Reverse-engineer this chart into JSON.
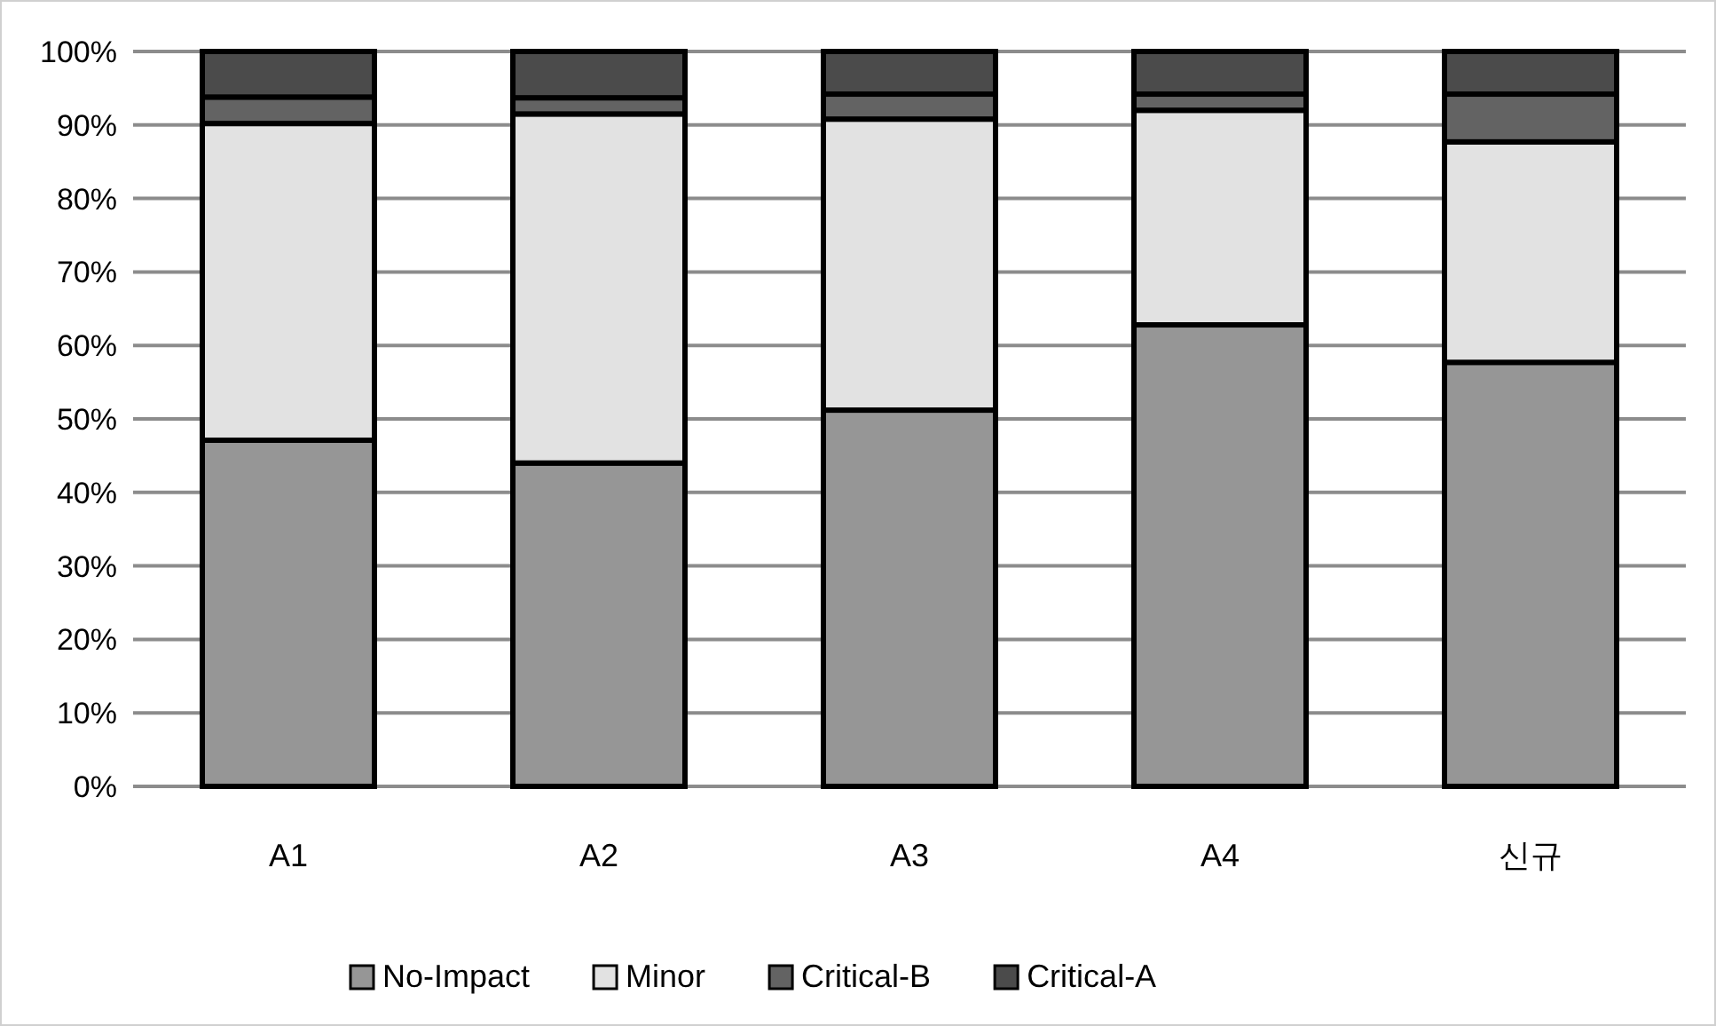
{
  "chart_data": {
    "type": "bar",
    "stacked": true,
    "categories": [
      "A1",
      "A2",
      "A3",
      "A4",
      "신규"
    ],
    "series": [
      {
        "name": "No-Impact",
        "color": "#969696",
        "values": [
          47.1,
          44,
          51.2,
          62.8,
          57.7
        ]
      },
      {
        "name": "Minor",
        "color": "#e2e2e2",
        "values": [
          43.1,
          47.5,
          39.6,
          29.2,
          30
        ]
      },
      {
        "name": "Critical-B",
        "color": "#636363",
        "values": [
          3.6,
          2.2,
          3.4,
          2.2,
          6.5
        ]
      },
      {
        "name": "Critical-A",
        "color": "#4b4b4b",
        "values": [
          6.2,
          6.3,
          5.8,
          5.8,
          5.8
        ]
      }
    ],
    "ylim": [
      0,
      100
    ],
    "yticks": [
      {
        "value": 0,
        "label": "0%"
      },
      {
        "value": 10,
        "label": "10%"
      },
      {
        "value": 20,
        "label": "20%"
      },
      {
        "value": 30,
        "label": "30%"
      },
      {
        "value": 40,
        "label": "40%"
      },
      {
        "value": 50,
        "label": "50%"
      },
      {
        "value": 60,
        "label": "60%"
      },
      {
        "value": 70,
        "label": "70%"
      },
      {
        "value": 80,
        "label": "80%"
      },
      {
        "value": 90,
        "label": "90%"
      },
      {
        "value": 100,
        "label": "100%"
      }
    ],
    "grid": "y",
    "legend": "bottom"
  }
}
